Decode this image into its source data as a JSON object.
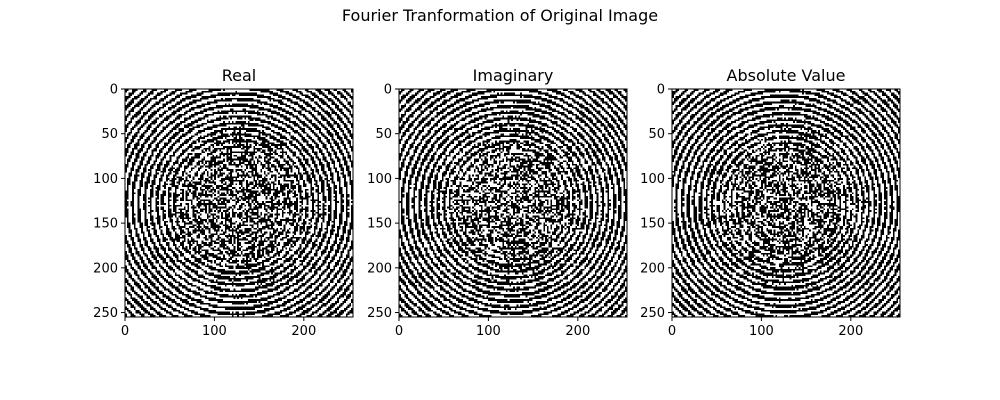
{
  "figure": {
    "suptitle": "Fourier Tranformation of Original Image"
  },
  "chart_data": [
    {
      "type": "heatmap",
      "title": "Real",
      "colormap": "binary (black/white)",
      "xlim": [
        0,
        255
      ],
      "ylim": [
        255,
        0
      ],
      "xticks": [
        0,
        100,
        200
      ],
      "yticks": [
        0,
        50,
        100,
        150,
        200,
        250
      ],
      "grid": false
    },
    {
      "type": "heatmap",
      "title": "Imaginary",
      "colormap": "binary (black/white)",
      "xlim": [
        0,
        255
      ],
      "ylim": [
        255,
        0
      ],
      "xticks": [
        0,
        100,
        200
      ],
      "yticks": [
        0,
        50,
        100,
        150,
        200,
        250
      ],
      "grid": false
    },
    {
      "type": "heatmap",
      "title": "Absolute Value",
      "colormap": "binary (black/white)",
      "xlim": [
        0,
        255
      ],
      "ylim": [
        255,
        0
      ],
      "xticks": [
        0,
        100,
        200
      ],
      "yticks": [
        0,
        50,
        100,
        150,
        200,
        250
      ],
      "grid": false
    }
  ]
}
